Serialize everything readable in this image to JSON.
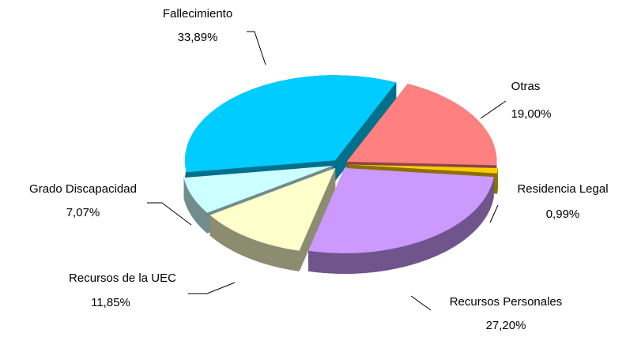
{
  "chart_data": {
    "type": "pie",
    "categories": [
      "Otras",
      "Residencia Legal",
      "Recursos Personales",
      "Recursos de la UEC",
      "Grado Discapacidad",
      "Fallecimiento"
    ],
    "values": [
      19.0,
      0.99,
      27.2,
      11.85,
      7.07,
      33.89
    ],
    "value_labels": [
      "19,00%",
      "0,99%",
      "27,20%",
      "11,85%",
      "7,07%",
      "33,89%"
    ],
    "colors": [
      "#FF8080",
      "#FFCC00",
      "#CC99FF",
      "#FFFFCC",
      "#CCFFFF",
      "#00CCFF"
    ]
  }
}
